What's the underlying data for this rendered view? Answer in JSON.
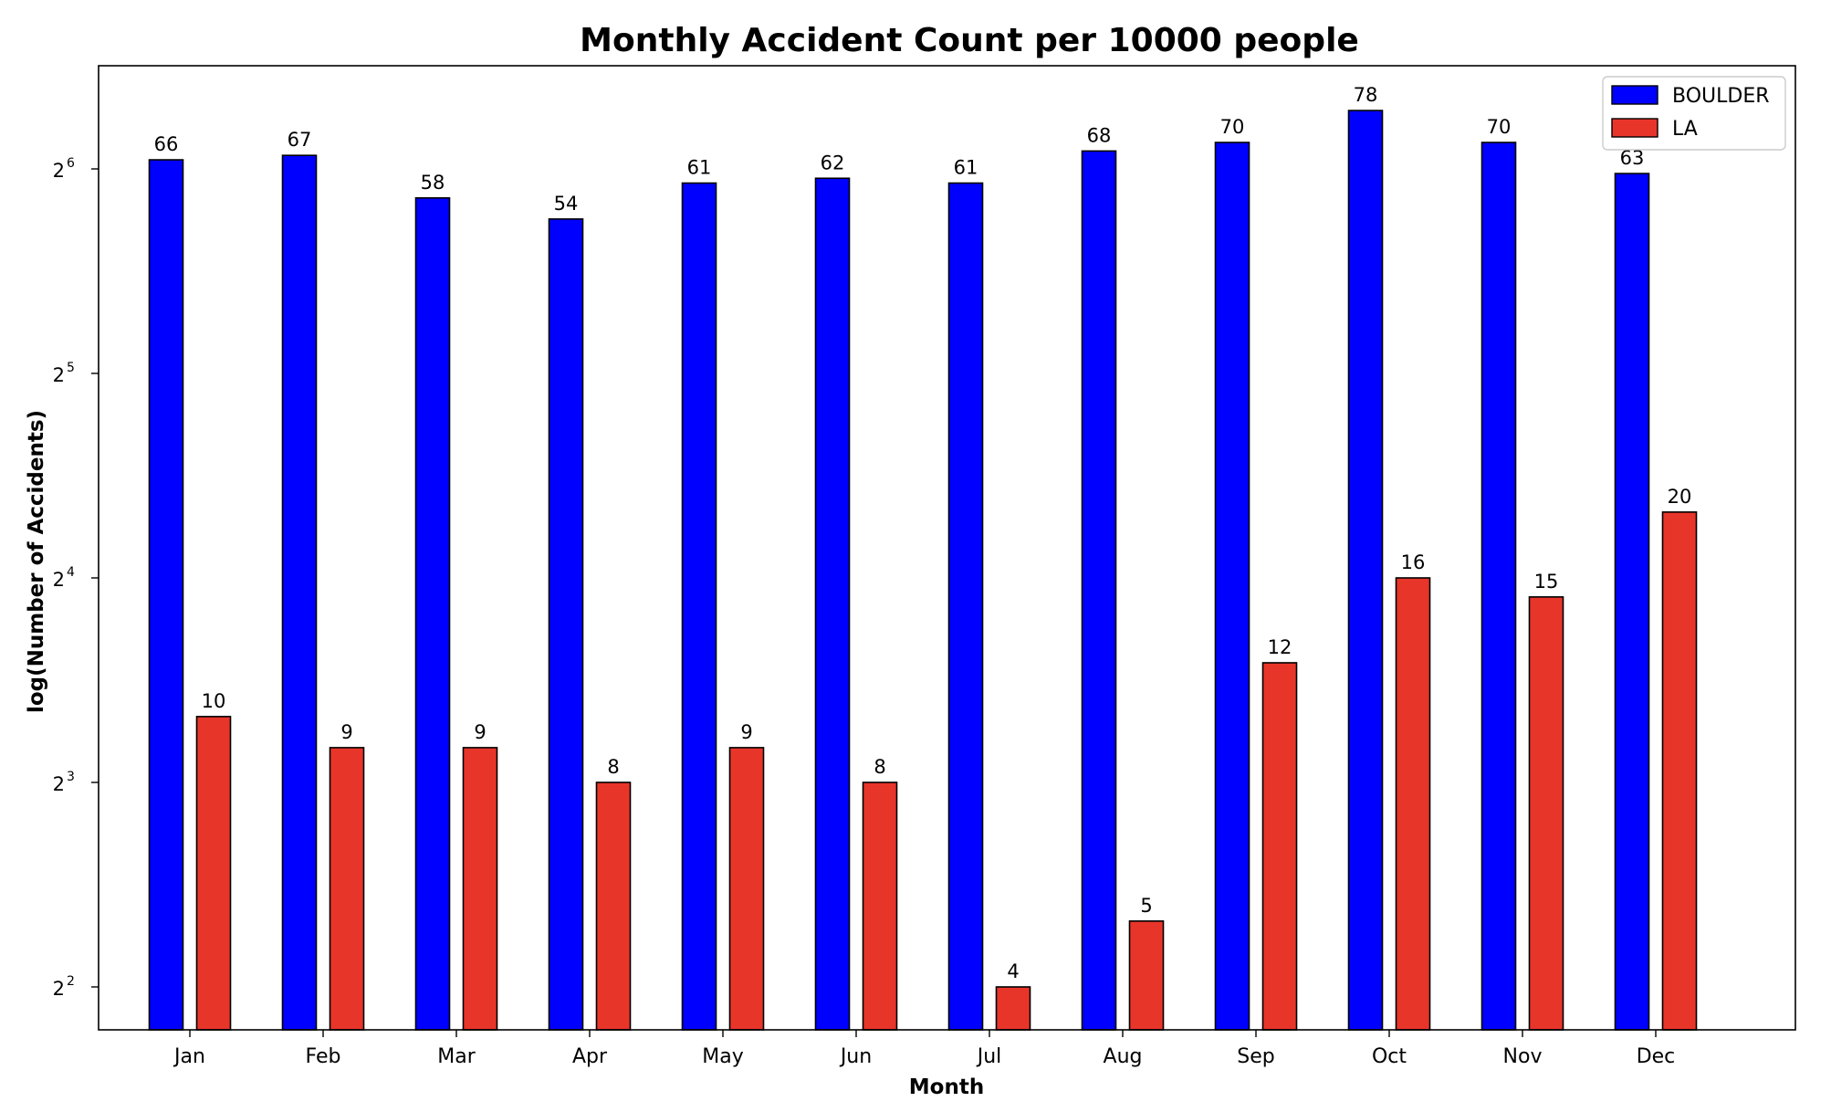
{
  "chart_data": {
    "type": "bar",
    "title": "Monthly Accident Count per 10000 people",
    "xlabel": "Month",
    "ylabel": "log(Number of Accidents)",
    "y_scale": "log2",
    "ylim": [
      3.4,
      111
    ],
    "y_ticks": [
      {
        "value": 4,
        "base": "2",
        "exp": "2"
      },
      {
        "value": 8,
        "base": "2",
        "exp": "3"
      },
      {
        "value": 16,
        "base": "2",
        "exp": "4"
      },
      {
        "value": 32,
        "base": "2",
        "exp": "5"
      },
      {
        "value": 64,
        "base": "2",
        "exp": "6"
      }
    ],
    "categories": [
      "Jan",
      "Feb",
      "Mar",
      "Apr",
      "May",
      "Jun",
      "Jul",
      "Aug",
      "Sep",
      "Oct",
      "Nov",
      "Dec"
    ],
    "series": [
      {
        "name": "BOULDER",
        "color": "#0000ff",
        "values": [
          66,
          67,
          58,
          54,
          61,
          62,
          61,
          68,
          70,
          78,
          70,
          63
        ]
      },
      {
        "name": "LA",
        "color": "#e8352a",
        "values": [
          10,
          9,
          9,
          8,
          9,
          8,
          4,
          5,
          12,
          16,
          15,
          20
        ]
      }
    ],
    "legend_position": "top-right",
    "grid": false,
    "data_labels": true
  }
}
